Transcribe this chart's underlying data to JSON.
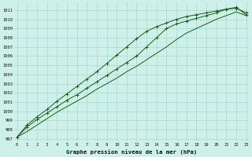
{
  "title": "Graphe pression niveau de la mer (hPa)",
  "bg_color": "#cdf0e8",
  "grid_color": "#a8d8d0",
  "line_color": "#1a5c1a",
  "xlim": [
    -0.3,
    23.3
  ],
  "ylim": [
    996.7,
    1011.8
  ],
  "xticks": [
    0,
    1,
    2,
    3,
    4,
    5,
    6,
    7,
    8,
    9,
    10,
    11,
    12,
    13,
    14,
    15,
    16,
    17,
    18,
    19,
    20,
    21,
    22,
    23
  ],
  "yticks": [
    997,
    998,
    999,
    1000,
    1001,
    1002,
    1003,
    1004,
    1005,
    1006,
    1007,
    1008,
    1009,
    1010,
    1011
  ],
  "line1_y": [
    997.2,
    998.3,
    999.1,
    999.8,
    1000.5,
    1001.2,
    1001.8,
    1002.5,
    1003.2,
    1003.9,
    1004.6,
    1005.3,
    1006.0,
    1007.0,
    1008.0,
    1009.0,
    1009.5,
    1009.8,
    1010.1,
    1010.4,
    1010.7,
    1011.1,
    1011.2,
    1010.7
  ],
  "line2_y": [
    997.2,
    998.5,
    999.4,
    1000.2,
    1001.1,
    1001.9,
    1002.7,
    1003.5,
    1004.3,
    1005.2,
    1006.1,
    1007.0,
    1007.9,
    1008.7,
    1009.2,
    1009.6,
    1010.0,
    1010.3,
    1010.5,
    1010.7,
    1010.9,
    1011.1,
    1011.3,
    1010.5
  ],
  "line3_y": [
    997.2,
    997.8,
    998.5,
    999.2,
    999.9,
    1000.5,
    1001.1,
    1001.7,
    1002.4,
    1003.0,
    1003.6,
    1004.3,
    1004.9,
    1005.6,
    1006.3,
    1007.0,
    1007.8,
    1008.5,
    1009.0,
    1009.5,
    1010.0,
    1010.4,
    1010.8,
    1010.4
  ]
}
